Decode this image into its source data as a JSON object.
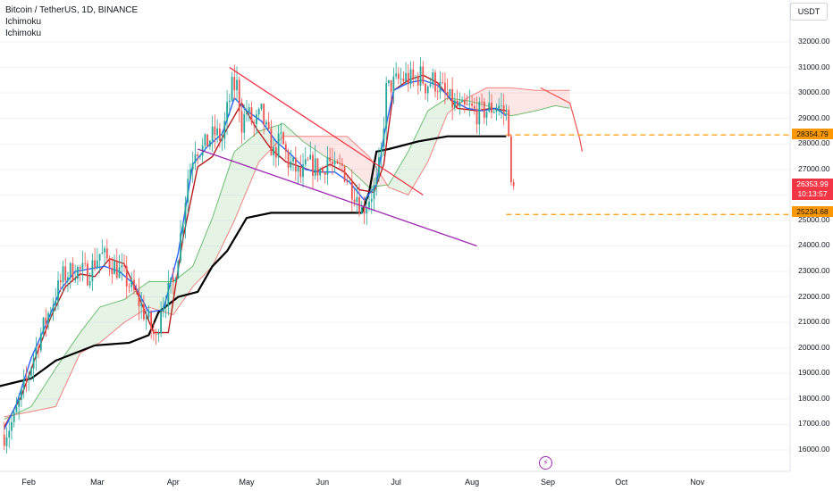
{
  "header": {
    "symbol_line": "Bitcoin / TetherUS, 1D, BINANCE",
    "indicators": [
      "Ichimoku",
      "Ichimoku"
    ],
    "currency": "USDT"
  },
  "price_tags": {
    "resistance": "28354.79",
    "current_price": "26353.99",
    "countdown": "10:13:57",
    "support": "25234.68"
  },
  "colors": {
    "up": "#26a69a",
    "down": "#ef5350",
    "tenkan": "#2962ff",
    "kijun": "#b71c1c",
    "baseline": "#000000",
    "span_a": "#4caf50",
    "span_b": "#ef5350",
    "trendline_upper": "#f23645",
    "trendline_lower": "#9c27b0",
    "level": "#ff9800"
  },
  "icons": {
    "event": "lightning-icon"
  },
  "chart_data": {
    "type": "candlestick",
    "y_axis_ticks": [
      32000,
      31000,
      30000,
      29000,
      28000,
      27000,
      26000,
      25000,
      24000,
      23000,
      22000,
      21000,
      20000,
      19000,
      18000,
      17000,
      16000
    ],
    "y_tick_labels": [
      "32000.00",
      "31000.00",
      "30000.00",
      "29000.00",
      "28000.00",
      "27000.00",
      "26000.00",
      "25000.00",
      "24000.00",
      "23000.00",
      "22000.00",
      "21000.00",
      "20000.00",
      "19000.00",
      "18000.00",
      "17000.00",
      "16000.00"
    ],
    "x_axis_labels": [
      "Feb",
      "Mar",
      "Apr",
      "May",
      "Jun",
      "Jul",
      "Aug",
      "Sep",
      "Oct",
      "Nov"
    ],
    "ylim": [
      15500,
      32500
    ],
    "price_series": [
      [
        1,
        16600
      ],
      [
        5,
        17200
      ],
      [
        10,
        18700
      ],
      [
        15,
        20300
      ],
      [
        20,
        21600
      ],
      [
        25,
        22800
      ],
      [
        30,
        23100
      ],
      [
        35,
        22900
      ],
      [
        40,
        23700
      ],
      [
        45,
        23300
      ],
      [
        50,
        22800
      ],
      [
        55,
        22000
      ],
      [
        60,
        21000
      ],
      [
        63,
        20300
      ],
      [
        65,
        21700
      ],
      [
        70,
        22500
      ],
      [
        73,
        24400
      ],
      [
        76,
        26700
      ],
      [
        79,
        27900
      ],
      [
        82,
        27800
      ],
      [
        85,
        28200
      ],
      [
        87,
        28400
      ],
      [
        90,
        28200
      ],
      [
        92,
        29300
      ],
      [
        94,
        30200
      ],
      [
        96,
        30300
      ],
      [
        98,
        28800
      ],
      [
        100,
        29300
      ],
      [
        103,
        28700
      ],
      [
        106,
        29200
      ],
      [
        108,
        28500
      ],
      [
        111,
        27600
      ],
      [
        114,
        28200
      ],
      [
        117,
        27300
      ],
      [
        120,
        27000
      ],
      [
        122,
        26700
      ],
      [
        125,
        27200
      ],
      [
        128,
        27100
      ],
      [
        131,
        26900
      ],
      [
        133,
        27500
      ],
      [
        136,
        26900
      ],
      [
        139,
        27100
      ],
      [
        142,
        26400
      ],
      [
        145,
        26000
      ],
      [
        147,
        25400
      ],
      [
        150,
        25900
      ],
      [
        153,
        26400
      ],
      [
        155,
        27700
      ],
      [
        157,
        30100
      ],
      [
        159,
        30300
      ],
      [
        162,
        30500
      ],
      [
        165,
        30600
      ],
      [
        168,
        30500
      ],
      [
        171,
        30700
      ],
      [
        173,
        30300
      ],
      [
        176,
        30500
      ],
      [
        179,
        30200
      ],
      [
        182,
        29800
      ],
      [
        185,
        29500
      ],
      [
        188,
        29300
      ],
      [
        191,
        29400
      ],
      [
        194,
        29200
      ],
      [
        197,
        29300
      ],
      [
        200,
        29400
      ],
      [
        203,
        29500
      ],
      [
        206,
        29200
      ],
      [
        207,
        28300
      ],
      [
        208,
        26500
      ],
      [
        209,
        26350
      ]
    ],
    "tenkan_sen": [
      [
        1,
        16800
      ],
      [
        6,
        17800
      ],
      [
        12,
        19600
      ],
      [
        18,
        20900
      ],
      [
        24,
        22300
      ],
      [
        30,
        23000
      ],
      [
        36,
        23100
      ],
      [
        42,
        23200
      ],
      [
        48,
        23000
      ],
      [
        54,
        22500
      ],
      [
        60,
        21400
      ],
      [
        66,
        21500
      ],
      [
        72,
        23700
      ],
      [
        78,
        27200
      ],
      [
        84,
        27900
      ],
      [
        90,
        28400
      ],
      [
        95,
        29800
      ],
      [
        100,
        29300
      ],
      [
        106,
        28900
      ],
      [
        112,
        28100
      ],
      [
        118,
        27600
      ],
      [
        124,
        27000
      ],
      [
        130,
        26900
      ],
      [
        136,
        26900
      ],
      [
        142,
        26500
      ],
      [
        148,
        25800
      ],
      [
        153,
        26400
      ],
      [
        156,
        28300
      ],
      [
        160,
        30100
      ],
      [
        166,
        30400
      ],
      [
        172,
        30500
      ],
      [
        178,
        30300
      ],
      [
        184,
        29700
      ],
      [
        190,
        29400
      ],
      [
        196,
        29300
      ],
      [
        202,
        29400
      ],
      [
        206,
        29100
      ]
    ],
    "kijun_sen": [
      [
        1,
        16900
      ],
      [
        8,
        18100
      ],
      [
        14,
        19700
      ],
      [
        20,
        21200
      ],
      [
        26,
        22400
      ],
      [
        32,
        22900
      ],
      [
        38,
        22800
      ],
      [
        44,
        23500
      ],
      [
        50,
        23300
      ],
      [
        56,
        22000
      ],
      [
        62,
        20600
      ],
      [
        68,
        20600
      ],
      [
        74,
        24300
      ],
      [
        80,
        27100
      ],
      [
        86,
        27500
      ],
      [
        92,
        28600
      ],
      [
        98,
        29600
      ],
      [
        104,
        28600
      ],
      [
        110,
        27800
      ],
      [
        116,
        27300
      ],
      [
        122,
        27100
      ],
      [
        128,
        26900
      ],
      [
        134,
        27200
      ],
      [
        140,
        26900
      ],
      [
        146,
        26200
      ],
      [
        152,
        26100
      ],
      [
        156,
        27200
      ],
      [
        160,
        30100
      ],
      [
        166,
        30500
      ],
      [
        172,
        30700
      ],
      [
        178,
        30400
      ],
      [
        186,
        29400
      ],
      [
        194,
        29300
      ],
      [
        200,
        29400
      ],
      [
        206,
        29300
      ]
    ],
    "baseline": [
      [
        -1,
        18500
      ],
      [
        12,
        18800
      ],
      [
        22,
        19500
      ],
      [
        38,
        20100
      ],
      [
        52,
        20200
      ],
      [
        60,
        20500
      ],
      [
        64,
        21400
      ],
      [
        72,
        22000
      ],
      [
        80,
        22200
      ],
      [
        86,
        23200
      ],
      [
        92,
        23800
      ],
      [
        100,
        25100
      ],
      [
        110,
        25300
      ],
      [
        125,
        25300
      ],
      [
        143,
        25300
      ],
      [
        147,
        25300
      ],
      [
        150,
        26100
      ],
      [
        153,
        27700
      ],
      [
        158,
        27800
      ],
      [
        170,
        28100
      ],
      [
        182,
        28300
      ],
      [
        195,
        28300
      ],
      [
        206,
        28300
      ]
    ],
    "ichimoku_span_a": [
      [
        1,
        17200
      ],
      [
        12,
        17700
      ],
      [
        22,
        19200
      ],
      [
        32,
        20600
      ],
      [
        40,
        21600
      ],
      [
        50,
        21900
      ],
      [
        60,
        22600
      ],
      [
        70,
        22600
      ],
      [
        78,
        23200
      ],
      [
        86,
        25100
      ],
      [
        95,
        27700
      ],
      [
        105,
        28500
      ],
      [
        115,
        28800
      ],
      [
        123,
        28100
      ],
      [
        132,
        27500
      ],
      [
        141,
        27100
      ],
      [
        150,
        26300
      ],
      [
        158,
        26400
      ],
      [
        166,
        27700
      ],
      [
        174,
        29300
      ],
      [
        182,
        29800
      ],
      [
        190,
        29700
      ],
      [
        198,
        29500
      ],
      [
        208,
        29100
      ],
      [
        218,
        29300
      ],
      [
        226,
        29500
      ],
      [
        232,
        29400
      ]
    ],
    "ichimoku_span_b": [
      [
        1,
        17300
      ],
      [
        12,
        17500
      ],
      [
        22,
        17700
      ],
      [
        32,
        19800
      ],
      [
        40,
        20200
      ],
      [
        50,
        21000
      ],
      [
        60,
        21600
      ],
      [
        70,
        21300
      ],
      [
        78,
        22400
      ],
      [
        86,
        23200
      ],
      [
        95,
        25000
      ],
      [
        105,
        27300
      ],
      [
        115,
        28300
      ],
      [
        123,
        28300
      ],
      [
        132,
        28300
      ],
      [
        141,
        28300
      ],
      [
        150,
        27500
      ],
      [
        158,
        26300
      ],
      [
        166,
        26000
      ],
      [
        174,
        27300
      ],
      [
        182,
        29200
      ],
      [
        190,
        29800
      ],
      [
        198,
        30200
      ],
      [
        208,
        30200
      ],
      [
        218,
        30100
      ],
      [
        226,
        30100
      ],
      [
        232,
        30100
      ]
    ],
    "lagging_span": [
      [
        220,
        30200
      ],
      [
        228,
        29800
      ],
      [
        232,
        29600
      ],
      [
        236,
        28200
      ],
      [
        237,
        27700
      ]
    ],
    "trendlines": [
      {
        "name": "upper",
        "from": [
          93,
          31000
        ],
        "to": [
          172,
          26000
        ]
      },
      {
        "name": "lower",
        "from": [
          80,
          27800
        ],
        "to": [
          194,
          24000
        ]
      }
    ],
    "levels": [
      28354.79,
      25234.68
    ],
    "current_price": 26353.99
  }
}
